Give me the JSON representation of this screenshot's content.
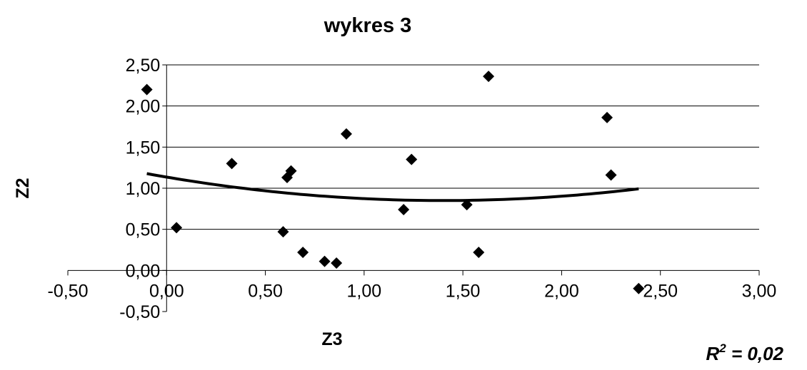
{
  "chart_data": {
    "type": "scatter",
    "title": "wykres 3",
    "xlabel": "Z3",
    "ylabel": "Z2",
    "xlim": [
      -0.5,
      3.0
    ],
    "ylim": [
      -0.5,
      2.5
    ],
    "x_ticks": [
      "-0,50",
      "0,00",
      "0,50",
      "1,00",
      "1,50",
      "2,00",
      "2,50",
      "3,00"
    ],
    "y_ticks": [
      "-0,50",
      "0,00",
      "0,50",
      "1,00",
      "1,50",
      "2,00",
      "2,50"
    ],
    "grid": "horizontal major gridlines",
    "legend": "none",
    "marker": "diamond",
    "colors": {
      "marker": "#000000",
      "trendline": "#000000",
      "gridline": "#000000"
    },
    "series": [
      {
        "points": [
          {
            "x": -0.1,
            "y": 2.2
          },
          {
            "x": 0.05,
            "y": 0.52
          },
          {
            "x": 0.33,
            "y": 1.3
          },
          {
            "x": 0.59,
            "y": 0.47
          },
          {
            "x": 0.61,
            "y": 1.13
          },
          {
            "x": 0.63,
            "y": 1.21
          },
          {
            "x": 0.69,
            "y": 0.22
          },
          {
            "x": 0.8,
            "y": 0.11
          },
          {
            "x": 0.86,
            "y": 0.09
          },
          {
            "x": 0.91,
            "y": 1.66
          },
          {
            "x": 1.2,
            "y": 0.74
          },
          {
            "x": 1.24,
            "y": 1.35
          },
          {
            "x": 1.52,
            "y": 0.8
          },
          {
            "x": 1.58,
            "y": 0.22
          },
          {
            "x": 1.63,
            "y": 2.36
          },
          {
            "x": 2.23,
            "y": 1.86
          },
          {
            "x": 2.25,
            "y": 1.16
          },
          {
            "x": 2.39,
            "y": -0.22
          }
        ]
      }
    ],
    "trendline": {
      "type": "polynomial",
      "order": 2,
      "coefficients": {
        "a": 0.1455,
        "b": -0.4074,
        "c": 1.1352
      },
      "x_range": [
        -0.1,
        2.39
      ],
      "r_squared_label": "R",
      "r_squared_exponent": "2",
      "r_squared_value": " = 0,02"
    }
  }
}
